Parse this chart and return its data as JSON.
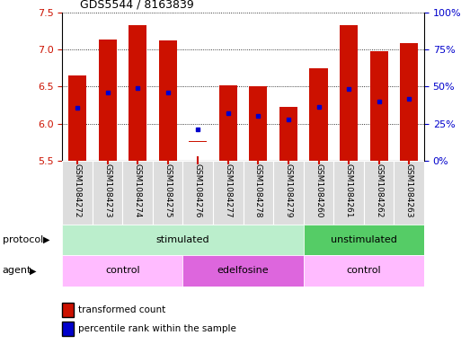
{
  "title": "GDS5544 / 8163839",
  "samples": [
    "GSM1084272",
    "GSM1084273",
    "GSM1084274",
    "GSM1084275",
    "GSM1084276",
    "GSM1084277",
    "GSM1084278",
    "GSM1084279",
    "GSM1084260",
    "GSM1084261",
    "GSM1084262",
    "GSM1084263"
  ],
  "bar_bottoms": [
    5.5,
    5.5,
    5.5,
    5.5,
    5.75,
    5.5,
    5.5,
    5.5,
    5.5,
    5.5,
    5.5,
    5.5
  ],
  "bar_tops": [
    6.65,
    7.13,
    7.33,
    7.12,
    5.77,
    6.52,
    6.5,
    6.22,
    6.75,
    7.33,
    6.97,
    7.09
  ],
  "blue_y": [
    6.21,
    6.42,
    6.48,
    6.42,
    5.92,
    6.14,
    6.1,
    6.05,
    6.22,
    6.47,
    6.3,
    6.33
  ],
  "ylim_left": [
    5.5,
    7.5
  ],
  "ylim_right": [
    0,
    100
  ],
  "yticks_left": [
    5.5,
    6.0,
    6.5,
    7.0,
    7.5
  ],
  "yticks_right": [
    0,
    25,
    50,
    75,
    100
  ],
  "ytick_labels_right": [
    "0%",
    "25%",
    "50%",
    "75%",
    "100%"
  ],
  "bar_color": "#CC1100",
  "blue_color": "#0000CC",
  "bg_color": "#FFFFFF",
  "plot_bg": "#FFFFFF",
  "protocol_labels": [
    "stimulated",
    "unstimulated"
  ],
  "agent_labels": [
    "control",
    "edelfosine",
    "control"
  ],
  "protocol_light": "#BBEECC",
  "protocol_dark": "#55CC66",
  "agent_light": "#FFBBFF",
  "agent_dark": "#DD66DD",
  "xticklabel_bg": "#DDDDDD",
  "legend_red_label": "transformed count",
  "legend_blue_label": "percentile rank within the sample"
}
